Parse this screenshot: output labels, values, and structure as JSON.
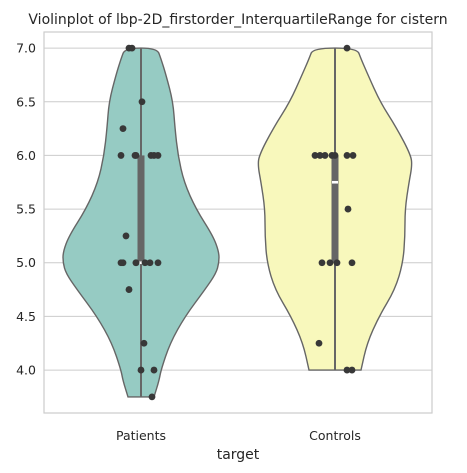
{
  "chart_data": {
    "type": "violin",
    "title": "Violinplot of lbp-2D_firstorder_InterquartileRange for cistern",
    "xlabel": "target",
    "ylabel": "",
    "categories": [
      "Patients",
      "Controls"
    ],
    "colors": [
      "#96cbc3",
      "#f8f8bc"
    ],
    "outline_color": "#666666",
    "point_color": "#383838",
    "ylim": [
      3.6,
      7.15
    ],
    "yticks": [
      "4.0",
      "4.5",
      "5.0",
      "5.5",
      "6.0",
      "6.5",
      "7.0"
    ],
    "grid": true,
    "series": [
      {
        "name": "Patients",
        "min": 3.75,
        "q1": 5.0,
        "median": 5.0,
        "q3": 6.0,
        "max": 7.0,
        "points": [
          7.0,
          7.0,
          6.5,
          6.25,
          6.0,
          6.0,
          6.0,
          6.0,
          6.0,
          6.0,
          5.25,
          5.0,
          5.0,
          5.0,
          5.0,
          5.0,
          5.0,
          5.0,
          4.75,
          4.25,
          4.0,
          4.0,
          3.75
        ]
      },
      {
        "name": "Controls",
        "min": 4.0,
        "q1": 5.0,
        "median": 5.75,
        "q3": 6.0,
        "max": 7.0,
        "points": [
          7.0,
          6.0,
          6.0,
          6.0,
          6.0,
          6.0,
          6.0,
          6.0,
          5.5,
          5.0,
          5.0,
          5.0,
          5.0,
          4.25,
          4.0,
          4.0
        ]
      }
    ]
  }
}
